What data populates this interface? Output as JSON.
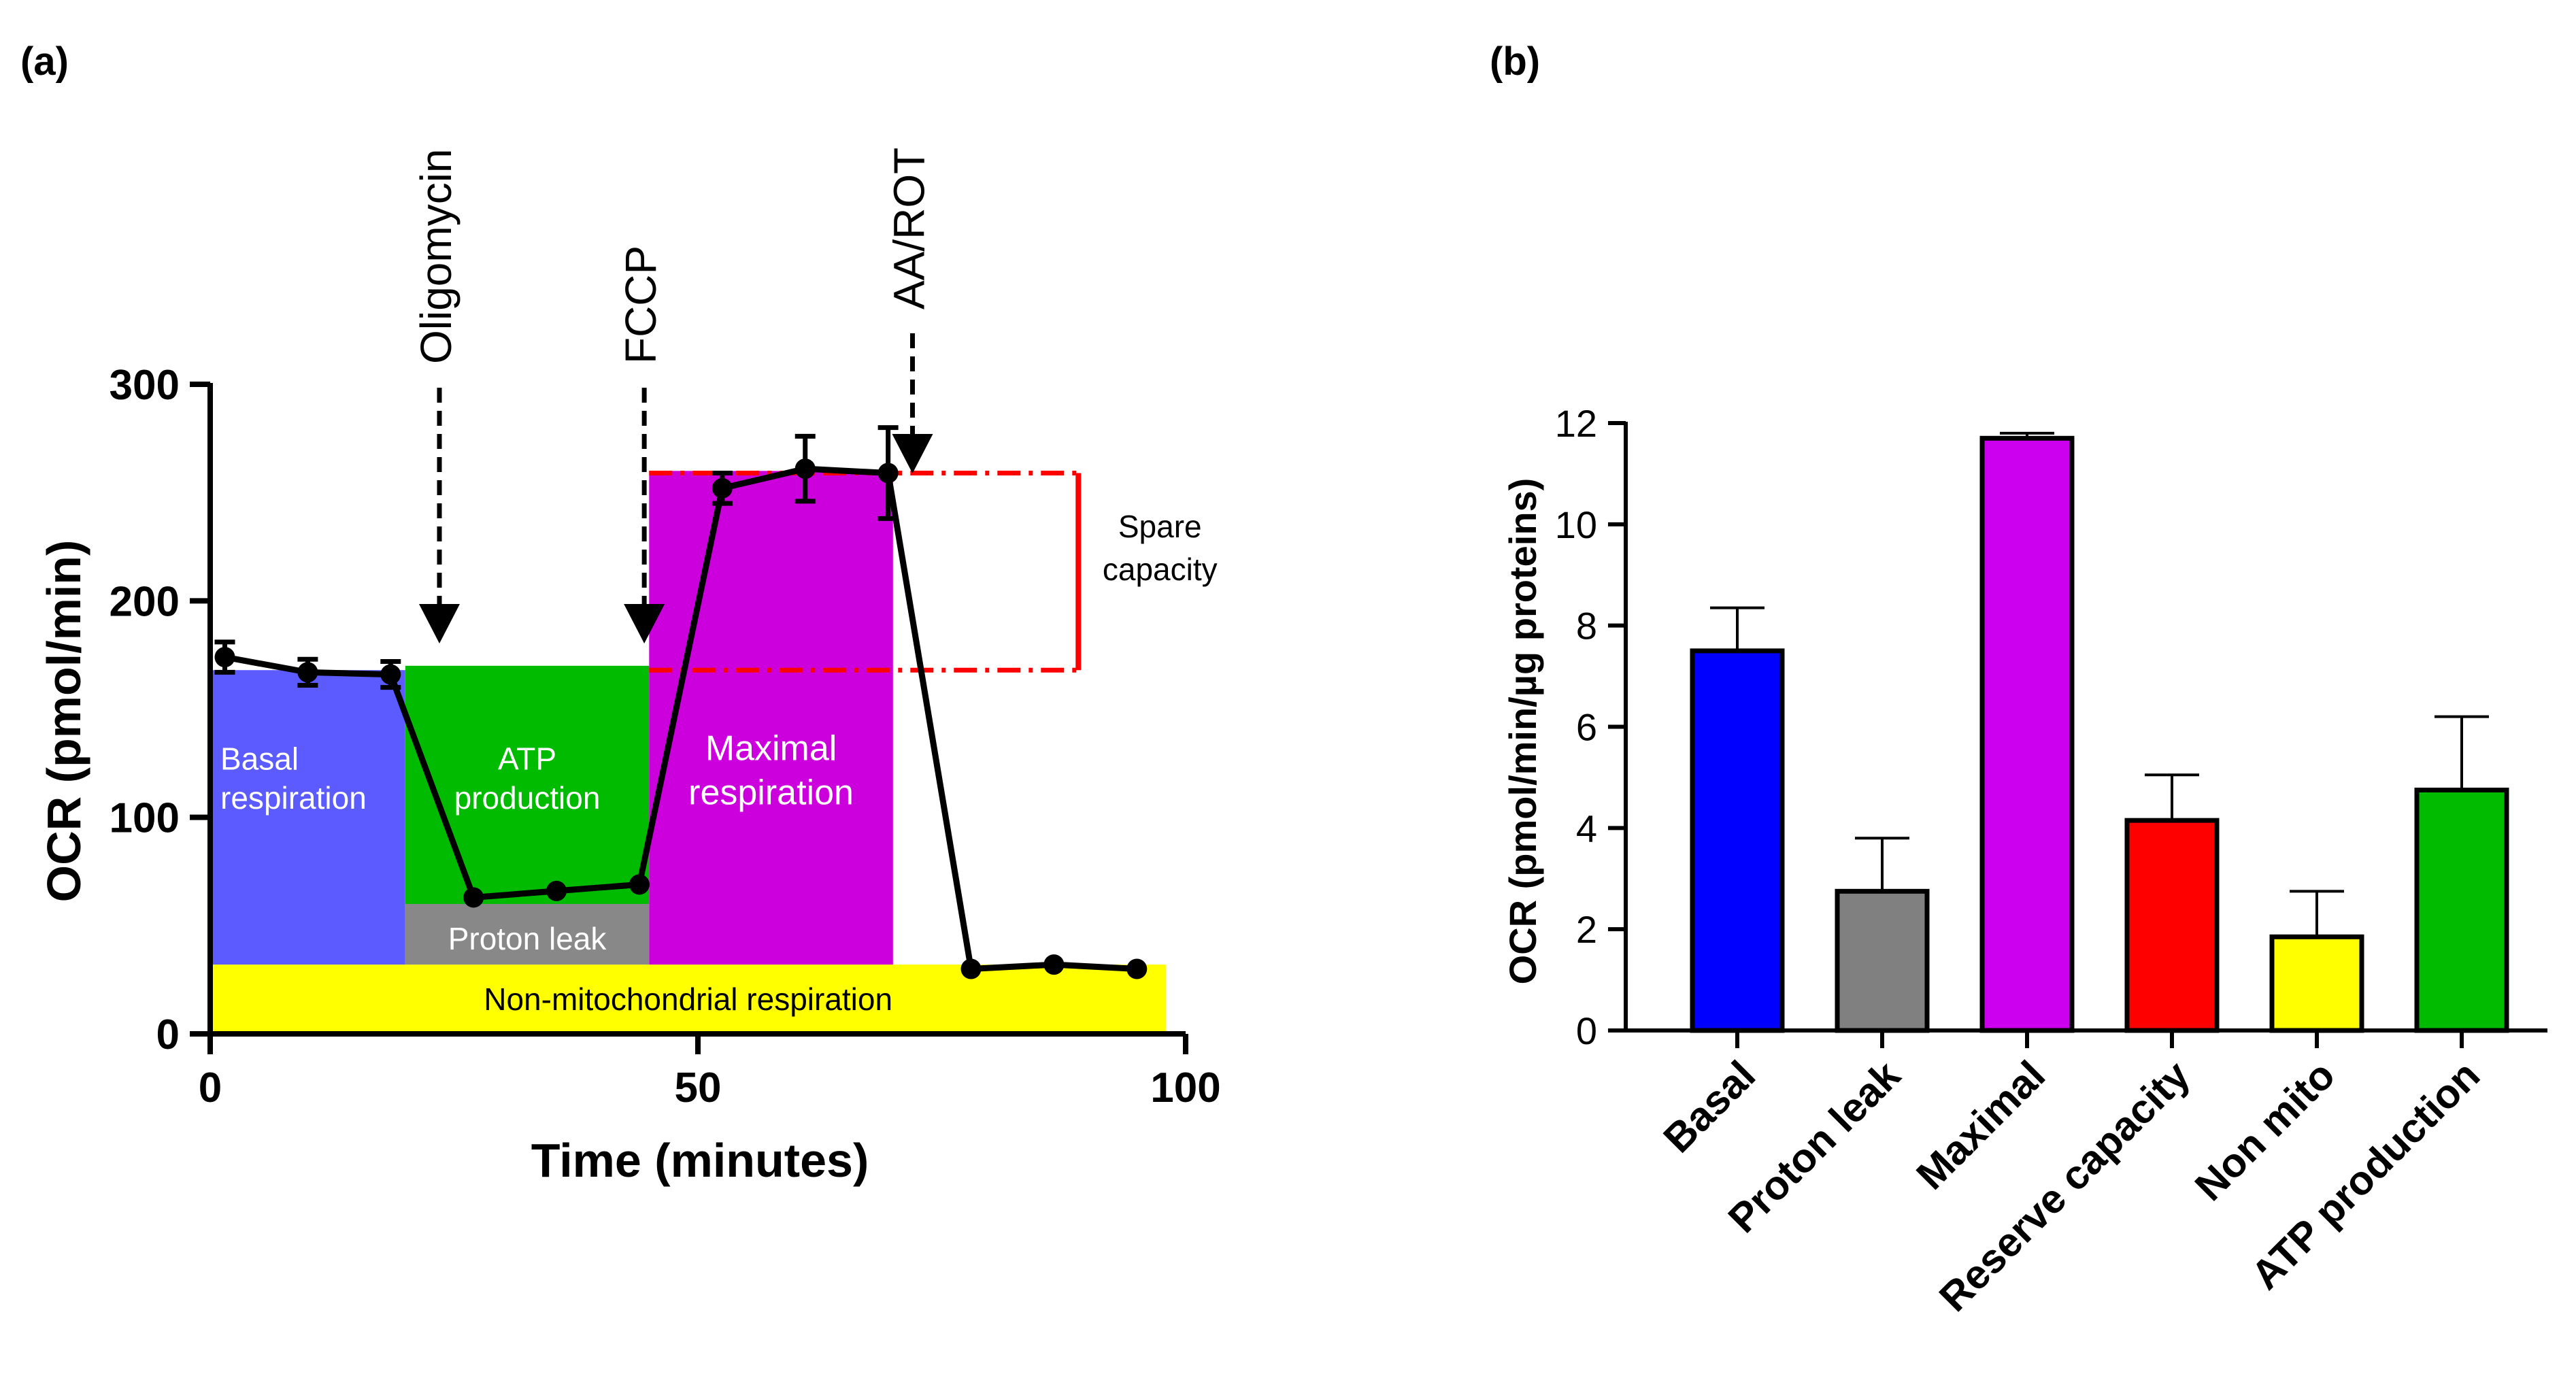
{
  "colors": {
    "basal": "#5b5bff",
    "atp": "#00bb00",
    "proton": "#888888",
    "maximal": "#cc00dd",
    "nonmito": "#ffff00",
    "spare": "#ff0000",
    "bar_basal": "#0000ff",
    "bar_proton": "#808080",
    "bar_maximal": "#cc00ee",
    "bar_reserve": "#ff0000",
    "bar_nonmito": "#ffff00",
    "bar_atp": "#00bb00"
  },
  "chart_data": [
    {
      "panel_label": "(a)",
      "type": "line",
      "xlabel": "Time (minutes)",
      "ylabel": "OCR (pmol/min)",
      "xlim": [
        0,
        100
      ],
      "ylim": [
        0,
        300
      ],
      "x_ticks": [
        0,
        50,
        100
      ],
      "y_ticks": [
        0,
        100,
        200,
        300
      ],
      "series": [
        {
          "name": "OCR",
          "x": [
            1.5,
            10,
            18.5,
            27,
            35.5,
            44,
            52.5,
            61,
            69.5,
            78,
            86.5,
            95
          ],
          "y": [
            174,
            167,
            166,
            63,
            66,
            69,
            252,
            261,
            259,
            30,
            32,
            30
          ],
          "err": [
            7,
            6,
            6,
            0,
            0,
            0,
            7,
            15,
            21,
            0,
            0,
            0
          ]
        }
      ],
      "regions": [
        {
          "key": "basal",
          "label": [
            "Basal",
            "respiration"
          ],
          "x": [
            0,
            20
          ],
          "y": [
            32,
            168
          ]
        },
        {
          "key": "atp",
          "label": [
            "ATP",
            "production"
          ],
          "x": [
            20,
            45
          ],
          "y": [
            60,
            170
          ]
        },
        {
          "key": "proton",
          "label": [
            "Proton leak"
          ],
          "x": [
            20,
            45
          ],
          "y": [
            32,
            60
          ]
        },
        {
          "key": "maximal",
          "label": [
            "Maximal",
            "respiration"
          ],
          "x": [
            45,
            70
          ],
          "y": [
            32,
            260
          ]
        },
        {
          "key": "nonmito",
          "label": [
            "Non-mitochondrial respiration"
          ],
          "x": [
            0,
            98
          ],
          "y": [
            0,
            32
          ]
        }
      ],
      "injections": [
        {
          "label": "Oligomycin",
          "x": 23.5
        },
        {
          "label": "FCCP",
          "x": 44.5
        },
        {
          "label": "AA/ROT",
          "x": 72
        }
      ],
      "spare_capacity": {
        "label": [
          "Spare",
          "capacity"
        ],
        "y_low": 168,
        "y_high": 259,
        "x_start": 45,
        "x_end": 89
      }
    },
    {
      "panel_label": "(b)",
      "type": "bar",
      "ylabel": "OCR (pmol/min/µg proteins)",
      "ylim": [
        0,
        12
      ],
      "y_ticks": [
        0,
        2,
        4,
        6,
        8,
        10,
        12
      ],
      "categories": [
        "Basal",
        "Proton leak",
        "Maximal",
        "Reserve capacity",
        "Non mito",
        "ATP production"
      ],
      "values": [
        7.5,
        2.75,
        11.7,
        4.15,
        1.85,
        4.75
      ],
      "err": [
        0.85,
        1.05,
        0.1,
        0.9,
        0.9,
        1.45
      ],
      "color_keys": [
        "bar_basal",
        "bar_proton",
        "bar_maximal",
        "bar_reserve",
        "bar_nonmito",
        "bar_atp"
      ]
    }
  ]
}
